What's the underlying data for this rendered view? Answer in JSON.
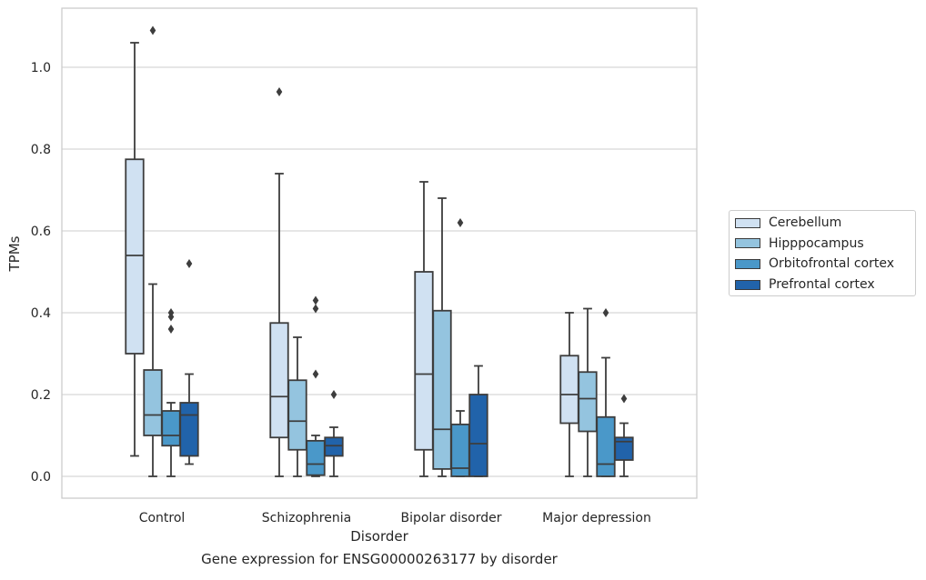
{
  "caption": "Gene expression for ENSG00000263177 by disorder",
  "chart_data": {
    "type": "boxplot",
    "xlabel": "Disorder",
    "ylabel": "TPMs",
    "ylim": [
      -0.05,
      1.145
    ],
    "yticks": [
      "0.0",
      "0.2",
      "0.4",
      "0.6",
      "0.8",
      "1.0"
    ],
    "grid": "horizontal",
    "legend_position": "right",
    "categories": [
      "Control",
      "Schizophrenia",
      "Bipolar disorder",
      "Major depression"
    ],
    "series": [
      {
        "name": "Cerebellum",
        "color": "#d0e1f2",
        "boxes": [
          {
            "min": 0.05,
            "q1": 0.3,
            "median": 0.54,
            "q3": 0.775,
            "max": 1.06,
            "outliers": []
          },
          {
            "min": 0.0,
            "q1": 0.095,
            "median": 0.195,
            "q3": 0.375,
            "max": 0.74,
            "outliers": [
              0.94
            ]
          },
          {
            "min": 0.0,
            "q1": 0.065,
            "median": 0.25,
            "q3": 0.5,
            "max": 0.72,
            "outliers": []
          },
          {
            "min": 0.0,
            "q1": 0.13,
            "median": 0.2,
            "q3": 0.295,
            "max": 0.4,
            "outliers": []
          }
        ]
      },
      {
        "name": "Hipppocampus",
        "color": "#94c4df",
        "boxes": [
          {
            "min": 0.0,
            "q1": 0.1,
            "median": 0.15,
            "q3": 0.26,
            "max": 0.47,
            "outliers": [
              1.09
            ]
          },
          {
            "min": 0.0,
            "q1": 0.065,
            "median": 0.135,
            "q3": 0.235,
            "max": 0.34,
            "outliers": []
          },
          {
            "min": 0.0,
            "q1": 0.018,
            "median": 0.115,
            "q3": 0.405,
            "max": 0.68,
            "outliers": []
          },
          {
            "min": 0.0,
            "q1": 0.11,
            "median": 0.19,
            "q3": 0.255,
            "max": 0.41,
            "outliers": []
          }
        ]
      },
      {
        "name": "Orbitofrontal cortex",
        "color": "#4a98c9",
        "boxes": [
          {
            "min": 0.0,
            "q1": 0.075,
            "median": 0.1,
            "q3": 0.16,
            "max": 0.18,
            "outliers": [
              0.36,
              0.39,
              0.4
            ]
          },
          {
            "min": 0.0,
            "q1": 0.003,
            "median": 0.03,
            "q3": 0.087,
            "max": 0.1,
            "outliers": [
              0.25,
              0.41,
              0.43
            ]
          },
          {
            "min": 0.0,
            "q1": 0.0,
            "median": 0.02,
            "q3": 0.127,
            "max": 0.16,
            "outliers": [
              0.62
            ]
          },
          {
            "min": 0.0,
            "q1": 0.0,
            "median": 0.03,
            "q3": 0.145,
            "max": 0.29,
            "outliers": [
              0.4
            ]
          }
        ]
      },
      {
        "name": "Prefrontal cortex",
        "color": "#2163aa",
        "boxes": [
          {
            "min": 0.03,
            "q1": 0.05,
            "median": 0.15,
            "q3": 0.18,
            "max": 0.25,
            "outliers": [
              0.52
            ]
          },
          {
            "min": 0.0,
            "q1": 0.05,
            "median": 0.075,
            "q3": 0.095,
            "max": 0.12,
            "outliers": [
              0.2
            ]
          },
          {
            "min": 0.0,
            "q1": 0.0,
            "median": 0.08,
            "q3": 0.2,
            "max": 0.27,
            "outliers": []
          },
          {
            "min": 0.0,
            "q1": 0.04,
            "median": 0.085,
            "q3": 0.095,
            "max": 0.13,
            "outliers": [
              0.19
            ]
          }
        ]
      }
    ]
  }
}
